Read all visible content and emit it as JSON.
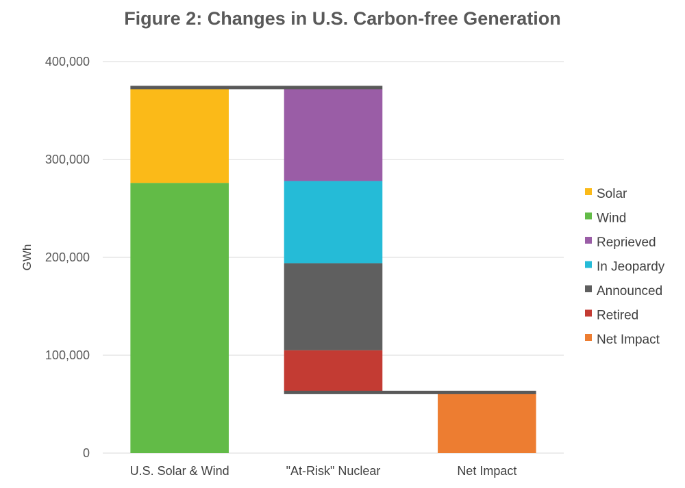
{
  "chart_data": {
    "type": "bar",
    "title": "Figure 2: Changes in U.S. Carbon-free Generation",
    "xlabel": "",
    "ylabel": "GWh",
    "ylim": [
      0,
      400000
    ],
    "yticks": [
      0,
      100000,
      200000,
      300000,
      400000
    ],
    "ytick_labels": [
      "0",
      "100,000",
      "200,000",
      "300,000",
      "400,000"
    ],
    "grid": true,
    "legend_position": "right",
    "categories": [
      "U.S. Solar & Wind",
      "\"At-Risk\" Nuclear",
      "Net Impact"
    ],
    "series": [
      {
        "name": "Solar",
        "color": "#FBBA18",
        "segments": [
          {
            "category": 0,
            "base": 276000,
            "value": 96000
          }
        ]
      },
      {
        "name": "Wind",
        "color": "#62BB47",
        "segments": [
          {
            "category": 0,
            "base": 0,
            "value": 276000
          }
        ]
      },
      {
        "name": "Reprieved",
        "color": "#9A5DA6",
        "segments": [
          {
            "category": 1,
            "base": 278000,
            "value": 94000
          }
        ]
      },
      {
        "name": "In Jeopardy",
        "color": "#25BBD7",
        "segments": [
          {
            "category": 1,
            "base": 194000,
            "value": 84000
          }
        ]
      },
      {
        "name": "Announced",
        "color": "#5F5F5F",
        "segments": [
          {
            "category": 1,
            "base": 105000,
            "value": 89000
          }
        ]
      },
      {
        "name": "Retired",
        "color": "#C33B33",
        "segments": [
          {
            "category": 1,
            "base": 63000,
            "value": 42000
          }
        ]
      },
      {
        "name": "Net Impact",
        "color": "#ED7D31",
        "segments": [
          {
            "category": 2,
            "base": 0,
            "value": 61000
          }
        ]
      }
    ],
    "connector_lines": [
      {
        "from_category": 0,
        "to_category": 1,
        "value": 373500
      },
      {
        "from_category": 1,
        "to_category": 2,
        "value": 62000
      }
    ],
    "connector_color": "#595959"
  }
}
